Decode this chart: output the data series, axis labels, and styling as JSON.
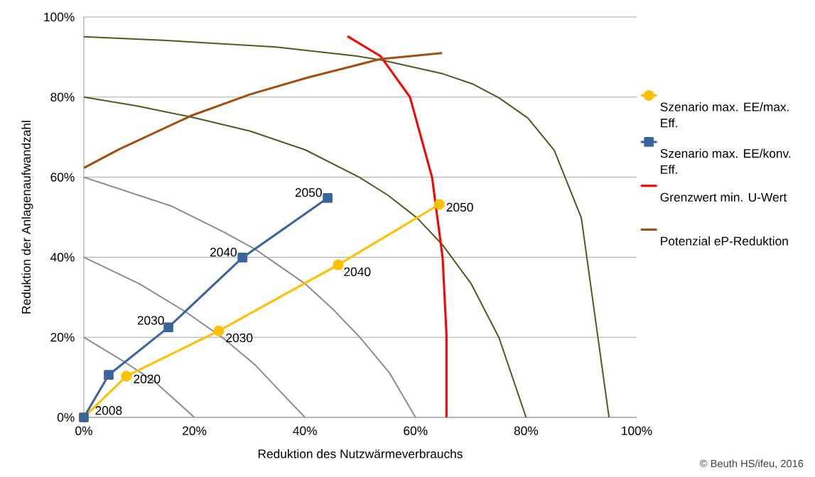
{
  "chart_data": {
    "type": "line",
    "xlabel": "Reduktion des Nutzwärmeverbrauchs",
    "ylabel": "Reduktion der Anlagenaufwandzahl",
    "annotations": [
      {
        "text": "2008",
        "x": 0,
        "y": 0
      },
      {
        "text": "2020",
        "x": 7.7,
        "y": 10.3
      },
      {
        "text": "2030",
        "x": 24.4,
        "y": 21.6
      },
      {
        "text": "2040",
        "x": 46.0,
        "y": 38.1
      },
      {
        "text": "2050",
        "x": 64.3,
        "y": 53.2
      },
      {
        "text": "2030",
        "x": 15.3,
        "y": 22.5
      },
      {
        "text": "2040",
        "x": 28.7,
        "y": 39.9
      },
      {
        "text": "2050",
        "x": 44.1,
        "y": 54.8
      },
      "© Beuth HS/ifeu, 2016"
    ],
    "xlim": [
      0,
      100
    ],
    "xticks": [
      {
        "value": 0,
        "label": "0%"
      },
      {
        "value": 20,
        "label": "20%"
      },
      {
        "value": 40,
        "label": "40%"
      },
      {
        "value": 60,
        "label": "60%"
      },
      {
        "value": 80,
        "label": "80%"
      },
      {
        "value": 100,
        "label": "100%"
      }
    ],
    "ylim": [
      0,
      100
    ],
    "yticks": [
      {
        "value": 0,
        "label": "0%"
      },
      {
        "value": 20,
        "label": "20%"
      },
      {
        "value": 40,
        "label": "40%"
      },
      {
        "value": 60,
        "label": "60%"
      },
      {
        "value": 80,
        "label": "80%"
      },
      {
        "value": 100,
        "label": "100%"
      }
    ],
    "grid": "y",
    "legend": "right",
    "series": [
      {
        "name": "Szenario max. EE/max. Eff.",
        "color": "#ffc000",
        "marker": "circle",
        "x": [
          0,
          7.7,
          24.4,
          46.0,
          64.3
        ],
        "values": [
          0,
          10.3,
          21.6,
          38.1,
          53.2
        ]
      },
      {
        "name": "Szenario max. EE/konv. Eff.",
        "color": "#3a659c",
        "marker": "square",
        "x": [
          0,
          4.5,
          15.3,
          28.7,
          44.1
        ],
        "values": [
          0,
          10.6,
          22.5,
          39.9,
          54.8
        ]
      },
      {
        "name": "Grenzwert min. U-Wert",
        "color": "#ff0000",
        "x": [
          47.7,
          53.7,
          59.0,
          63.0,
          64.9,
          65.6,
          65.6
        ],
        "values": [
          95.2,
          90.2,
          80.0,
          59.9,
          39.9,
          20.6,
          0
        ]
      },
      {
        "name": "Potenzial eP-Reduktion",
        "color": "#a0500f",
        "x": [
          0,
          6.3,
          19.5,
          30.1,
          40.5,
          49.1,
          53.6,
          64.8
        ],
        "values": [
          62.3,
          66.9,
          75.4,
          80.7,
          84.9,
          87.9,
          89.5,
          91.0
        ]
      },
      {
        "color": "#4f5a1f",
        "x": [
          0,
          14.3,
          34.8,
          49.1,
          54.1,
          65.0,
          70.3,
          75.1,
          80.3,
          85.1,
          90.0,
          95.0
        ],
        "values": [
          95.1,
          94.2,
          92.5,
          90.3,
          89.2,
          85.8,
          83.3,
          79.8,
          74.8,
          66.7,
          49.8,
          0
        ]
      },
      {
        "color": "#4f5a1f",
        "x": [
          0,
          9.6,
          19.5,
          30.1,
          40.1,
          49.8,
          55.0,
          60.3,
          65.0,
          70.1,
          75.1,
          80.0
        ],
        "values": [
          80.0,
          77.8,
          75.0,
          71.5,
          66.8,
          60.0,
          55.5,
          49.8,
          42.9,
          33.3,
          19.9,
          0
        ]
      },
      {
        "color": "#8c8c8c",
        "x": [
          0,
          15.8,
          25.3,
          31.0,
          40.1,
          45.0,
          50.0,
          55.3,
          60.0
        ],
        "values": [
          60.0,
          52.8,
          46.3,
          42.0,
          33.3,
          27.1,
          19.9,
          11.1,
          0
        ]
      },
      {
        "color": "#8c8c8c",
        "x": [
          0,
          10.0,
          18.6,
          25.3,
          31.0,
          35.3,
          40.0
        ],
        "values": [
          40.0,
          33.4,
          26.2,
          19.7,
          13.1,
          6.8,
          0
        ]
      },
      {
        "color": "#8c8c8c",
        "x": [
          0,
          7.2,
          12.9,
          20.0
        ],
        "values": [
          20.0,
          14.0,
          8.8,
          0
        ]
      }
    ]
  }
}
